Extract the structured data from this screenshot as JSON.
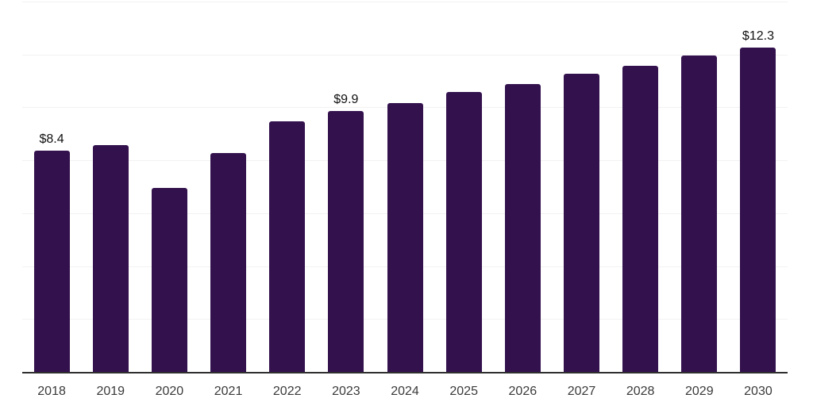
{
  "chart_data": {
    "type": "bar",
    "title": "",
    "xlabel": "",
    "ylabel": "",
    "categories": [
      "2018",
      "2019",
      "2020",
      "2021",
      "2022",
      "2023",
      "2024",
      "2025",
      "2026",
      "2027",
      "2028",
      "2029",
      "2030"
    ],
    "values": [
      8.4,
      8.6,
      7.0,
      8.3,
      9.5,
      9.9,
      10.2,
      10.6,
      10.9,
      11.3,
      11.6,
      12.0,
      12.3
    ],
    "data_labels": [
      {
        "category": "2018",
        "text": "$8.4"
      },
      {
        "category": "2023",
        "text": "$9.9"
      },
      {
        "category": "2030",
        "text": "$12.3"
      }
    ],
    "ylim": [
      0,
      14
    ],
    "gridline_step": 2,
    "grid": "horizontal",
    "legend": "none",
    "y_axis_labels": "none",
    "colors": {
      "bar": "#33114D",
      "gridline": "#F2F2F2",
      "axis_line": "#2E2E2E",
      "tick_label": "#3A3A3A",
      "data_label": "#101010",
      "background": "#FFFFFF"
    }
  }
}
